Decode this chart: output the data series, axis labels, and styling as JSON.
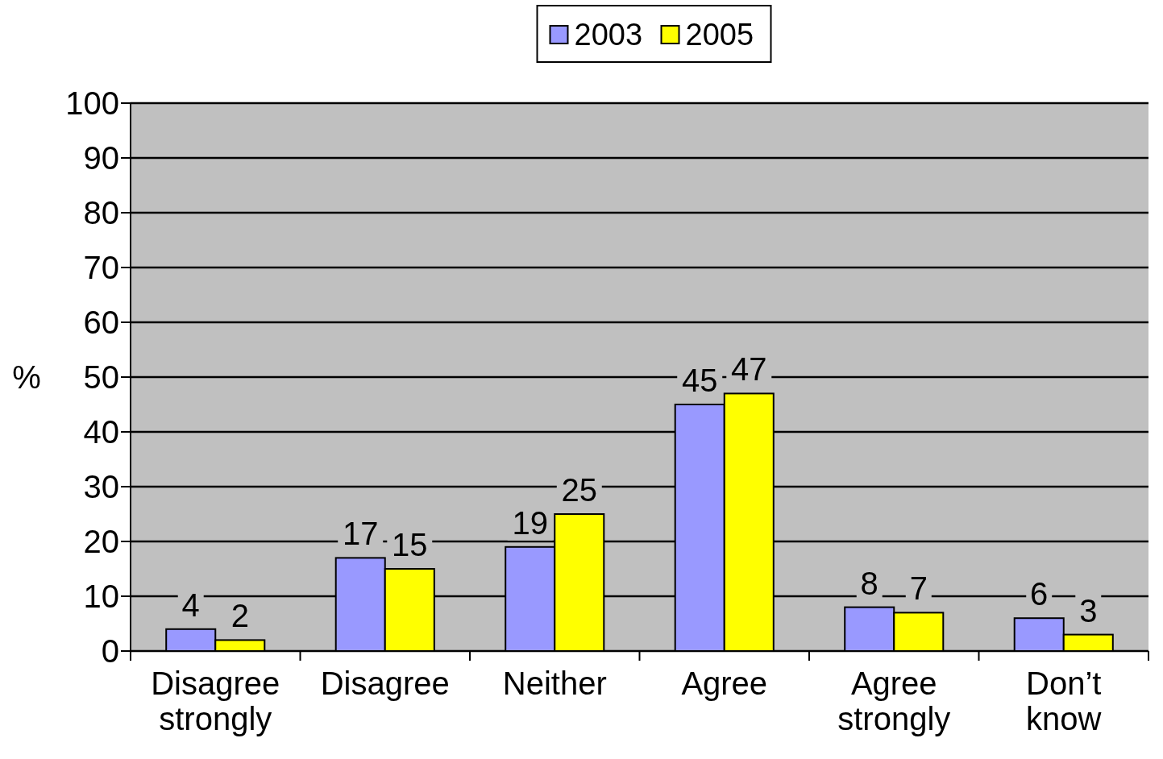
{
  "chart_data": {
    "type": "bar",
    "ylabel": "%",
    "categories": [
      "Disagree strongly",
      "Disagree",
      "Neither",
      "Agree",
      "Agree strongly",
      "Don’t know"
    ],
    "series": [
      {
        "name": "2003",
        "color": "#9999ff",
        "values": [
          4,
          17,
          19,
          45,
          8,
          6
        ]
      },
      {
        "name": "2005",
        "color": "#ffff00",
        "values": [
          2,
          15,
          25,
          47,
          7,
          3
        ]
      }
    ],
    "ylim": [
      0,
      100
    ],
    "yticks": [
      0,
      10,
      20,
      30,
      40,
      50,
      60,
      70,
      80,
      90,
      100
    ],
    "grid": "y",
    "legend": "top",
    "data_labels": true
  }
}
